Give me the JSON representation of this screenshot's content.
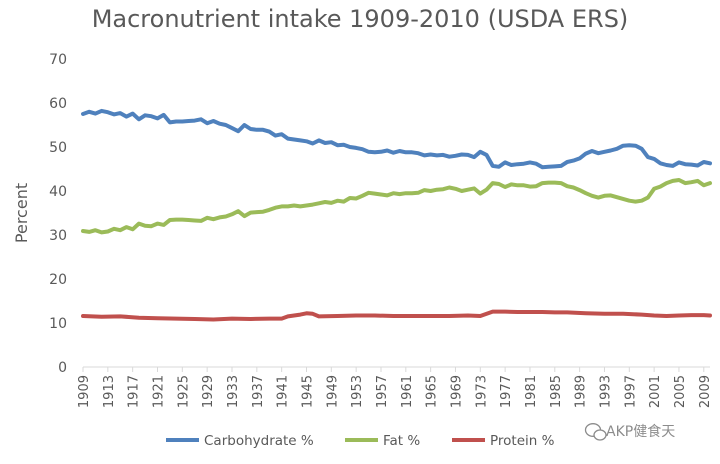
{
  "chart_data": {
    "type": "line",
    "title": "Macronutrient intake 1909-2010 (USDA ERS)",
    "xlabel": "",
    "ylabel": "Percent",
    "ylim": [
      0,
      70
    ],
    "yticks": [
      0,
      10,
      20,
      30,
      40,
      50,
      60,
      70
    ],
    "xrange": [
      1909,
      2010
    ],
    "xticks": [
      1909,
      1913,
      1917,
      1921,
      1925,
      1929,
      1933,
      1937,
      1941,
      1945,
      1949,
      1953,
      1957,
      1961,
      1965,
      1969,
      1973,
      1977,
      1981,
      1985,
      1989,
      1993,
      1997,
      2001,
      2005,
      2009
    ],
    "grid": false,
    "legend": "bottom",
    "series": [
      {
        "name": "Carbohydrate %",
        "color": "#4f81bd",
        "points": [
          [
            1909,
            57.5
          ],
          [
            1910,
            58.0
          ],
          [
            1911,
            57.6
          ],
          [
            1912,
            58.2
          ],
          [
            1913,
            57.9
          ],
          [
            1914,
            57.4
          ],
          [
            1915,
            57.7
          ],
          [
            1916,
            56.9
          ],
          [
            1917,
            57.6
          ],
          [
            1918,
            56.3
          ],
          [
            1919,
            57.2
          ],
          [
            1920,
            57.0
          ],
          [
            1921,
            56.5
          ],
          [
            1922,
            57.3
          ],
          [
            1923,
            55.6
          ],
          [
            1924,
            55.8
          ],
          [
            1925,
            55.8
          ],
          [
            1926,
            55.9
          ],
          [
            1927,
            56.0
          ],
          [
            1928,
            56.3
          ],
          [
            1929,
            55.4
          ],
          [
            1930,
            55.9
          ],
          [
            1931,
            55.3
          ],
          [
            1932,
            55.0
          ],
          [
            1933,
            54.3
          ],
          [
            1934,
            53.6
          ],
          [
            1935,
            55.0
          ],
          [
            1936,
            54.1
          ],
          [
            1937,
            53.9
          ],
          [
            1938,
            53.9
          ],
          [
            1939,
            53.5
          ],
          [
            1940,
            52.6
          ],
          [
            1941,
            52.9
          ],
          [
            1942,
            51.9
          ],
          [
            1943,
            51.7
          ],
          [
            1944,
            51.5
          ],
          [
            1945,
            51.3
          ],
          [
            1946,
            50.8
          ],
          [
            1947,
            51.5
          ],
          [
            1948,
            50.9
          ],
          [
            1949,
            51.1
          ],
          [
            1950,
            50.4
          ],
          [
            1951,
            50.5
          ],
          [
            1952,
            50.0
          ],
          [
            1953,
            49.8
          ],
          [
            1954,
            49.5
          ],
          [
            1955,
            48.9
          ],
          [
            1956,
            48.8
          ],
          [
            1957,
            48.9
          ],
          [
            1958,
            49.2
          ],
          [
            1959,
            48.7
          ],
          [
            1960,
            49.1
          ],
          [
            1961,
            48.8
          ],
          [
            1962,
            48.8
          ],
          [
            1963,
            48.6
          ],
          [
            1964,
            48.1
          ],
          [
            1965,
            48.3
          ],
          [
            1966,
            48.1
          ],
          [
            1967,
            48.2
          ],
          [
            1968,
            47.8
          ],
          [
            1969,
            48.0
          ],
          [
            1970,
            48.3
          ],
          [
            1971,
            48.2
          ],
          [
            1972,
            47.7
          ],
          [
            1973,
            48.9
          ],
          [
            1974,
            48.2
          ],
          [
            1975,
            45.7
          ],
          [
            1976,
            45.5
          ],
          [
            1977,
            46.5
          ],
          [
            1978,
            45.9
          ],
          [
            1979,
            46.1
          ],
          [
            1980,
            46.2
          ],
          [
            1981,
            46.5
          ],
          [
            1982,
            46.2
          ],
          [
            1983,
            45.4
          ],
          [
            1984,
            45.5
          ],
          [
            1985,
            45.6
          ],
          [
            1986,
            45.7
          ],
          [
            1987,
            46.6
          ],
          [
            1988,
            46.9
          ],
          [
            1989,
            47.4
          ],
          [
            1990,
            48.5
          ],
          [
            1991,
            49.1
          ],
          [
            1992,
            48.6
          ],
          [
            1993,
            48.9
          ],
          [
            1994,
            49.2
          ],
          [
            1995,
            49.6
          ],
          [
            1996,
            50.3
          ],
          [
            1997,
            50.4
          ],
          [
            1998,
            50.3
          ],
          [
            1999,
            49.6
          ],
          [
            2000,
            47.7
          ],
          [
            2001,
            47.3
          ],
          [
            2002,
            46.3
          ],
          [
            2003,
            45.9
          ],
          [
            2004,
            45.7
          ],
          [
            2005,
            46.5
          ],
          [
            2006,
            46.1
          ],
          [
            2007,
            46.0
          ],
          [
            2008,
            45.8
          ],
          [
            2009,
            46.6
          ],
          [
            2010,
            46.3
          ]
        ]
      },
      {
        "name": "Fat %",
        "color": "#9bbb59",
        "points": [
          [
            1909,
            30.9
          ],
          [
            1910,
            30.7
          ],
          [
            1911,
            31.1
          ],
          [
            1912,
            30.6
          ],
          [
            1913,
            30.8
          ],
          [
            1914,
            31.4
          ],
          [
            1915,
            31.1
          ],
          [
            1916,
            31.8
          ],
          [
            1917,
            31.3
          ],
          [
            1918,
            32.6
          ],
          [
            1919,
            32.1
          ],
          [
            1920,
            32.0
          ],
          [
            1921,
            32.6
          ],
          [
            1922,
            32.3
          ],
          [
            1923,
            33.4
          ],
          [
            1924,
            33.5
          ],
          [
            1925,
            33.5
          ],
          [
            1926,
            33.4
          ],
          [
            1927,
            33.3
          ],
          [
            1928,
            33.2
          ],
          [
            1929,
            33.9
          ],
          [
            1930,
            33.6
          ],
          [
            1931,
            34.0
          ],
          [
            1932,
            34.2
          ],
          [
            1933,
            34.7
          ],
          [
            1934,
            35.4
          ],
          [
            1935,
            34.3
          ],
          [
            1936,
            35.1
          ],
          [
            1937,
            35.2
          ],
          [
            1938,
            35.3
          ],
          [
            1939,
            35.7
          ],
          [
            1940,
            36.2
          ],
          [
            1941,
            36.5
          ],
          [
            1942,
            36.5
          ],
          [
            1943,
            36.7
          ],
          [
            1944,
            36.5
          ],
          [
            1945,
            36.7
          ],
          [
            1946,
            36.9
          ],
          [
            1947,
            37.2
          ],
          [
            1948,
            37.5
          ],
          [
            1949,
            37.3
          ],
          [
            1950,
            37.8
          ],
          [
            1951,
            37.6
          ],
          [
            1952,
            38.4
          ],
          [
            1953,
            38.3
          ],
          [
            1954,
            38.9
          ],
          [
            1955,
            39.6
          ],
          [
            1956,
            39.4
          ],
          [
            1957,
            39.2
          ],
          [
            1958,
            39.0
          ],
          [
            1959,
            39.5
          ],
          [
            1960,
            39.3
          ],
          [
            1961,
            39.5
          ],
          [
            1962,
            39.5
          ],
          [
            1963,
            39.6
          ],
          [
            1964,
            40.2
          ],
          [
            1965,
            40.0
          ],
          [
            1966,
            40.3
          ],
          [
            1967,
            40.4
          ],
          [
            1968,
            40.8
          ],
          [
            1969,
            40.5
          ],
          [
            1970,
            40.0
          ],
          [
            1971,
            40.3
          ],
          [
            1972,
            40.6
          ],
          [
            1973,
            39.4
          ],
          [
            1974,
            40.3
          ],
          [
            1975,
            41.8
          ],
          [
            1976,
            41.6
          ],
          [
            1977,
            40.9
          ],
          [
            1978,
            41.5
          ],
          [
            1979,
            41.3
          ],
          [
            1980,
            41.3
          ],
          [
            1981,
            41.0
          ],
          [
            1982,
            41.1
          ],
          [
            1983,
            41.8
          ],
          [
            1984,
            41.9
          ],
          [
            1985,
            41.9
          ],
          [
            1986,
            41.8
          ],
          [
            1987,
            41.1
          ],
          [
            1988,
            40.8
          ],
          [
            1989,
            40.2
          ],
          [
            1990,
            39.5
          ],
          [
            1991,
            38.9
          ],
          [
            1992,
            38.5
          ],
          [
            1993,
            38.9
          ],
          [
            1994,
            39.0
          ],
          [
            1995,
            38.6
          ],
          [
            1996,
            38.2
          ],
          [
            1997,
            37.8
          ],
          [
            1998,
            37.6
          ],
          [
            1999,
            37.8
          ],
          [
            2000,
            38.5
          ],
          [
            2001,
            40.5
          ],
          [
            2002,
            41.0
          ],
          [
            2003,
            41.8
          ],
          [
            2004,
            42.3
          ],
          [
            2005,
            42.5
          ],
          [
            2006,
            41.8
          ],
          [
            2007,
            42.0
          ],
          [
            2008,
            42.3
          ],
          [
            2009,
            41.3
          ],
          [
            2010,
            41.8
          ]
        ]
      },
      {
        "name": "Protein %",
        "color": "#c0504d",
        "points": [
          [
            1909,
            11.6
          ],
          [
            1912,
            11.4
          ],
          [
            1915,
            11.5
          ],
          [
            1918,
            11.2
          ],
          [
            1921,
            11.1
          ],
          [
            1924,
            11.0
          ],
          [
            1927,
            10.9
          ],
          [
            1930,
            10.8
          ],
          [
            1933,
            11.0
          ],
          [
            1936,
            10.9
          ],
          [
            1939,
            11.0
          ],
          [
            1941,
            11.0
          ],
          [
            1942,
            11.5
          ],
          [
            1944,
            11.9
          ],
          [
            1945,
            12.2
          ],
          [
            1946,
            12.1
          ],
          [
            1947,
            11.5
          ],
          [
            1950,
            11.6
          ],
          [
            1953,
            11.7
          ],
          [
            1956,
            11.7
          ],
          [
            1959,
            11.6
          ],
          [
            1962,
            11.6
          ],
          [
            1965,
            11.6
          ],
          [
            1968,
            11.6
          ],
          [
            1971,
            11.7
          ],
          [
            1973,
            11.6
          ],
          [
            1975,
            12.6
          ],
          [
            1977,
            12.6
          ],
          [
            1979,
            12.5
          ],
          [
            1981,
            12.5
          ],
          [
            1983,
            12.5
          ],
          [
            1985,
            12.4
          ],
          [
            1987,
            12.4
          ],
          [
            1990,
            12.2
          ],
          [
            1993,
            12.1
          ],
          [
            1996,
            12.1
          ],
          [
            1999,
            11.9
          ],
          [
            2001,
            11.7
          ],
          [
            2003,
            11.6
          ],
          [
            2005,
            11.7
          ],
          [
            2007,
            11.8
          ],
          [
            2009,
            11.8
          ],
          [
            2010,
            11.7
          ]
        ]
      }
    ]
  },
  "watermark": {
    "text": "AKP健食天",
    "icon": "wechat-icon"
  }
}
